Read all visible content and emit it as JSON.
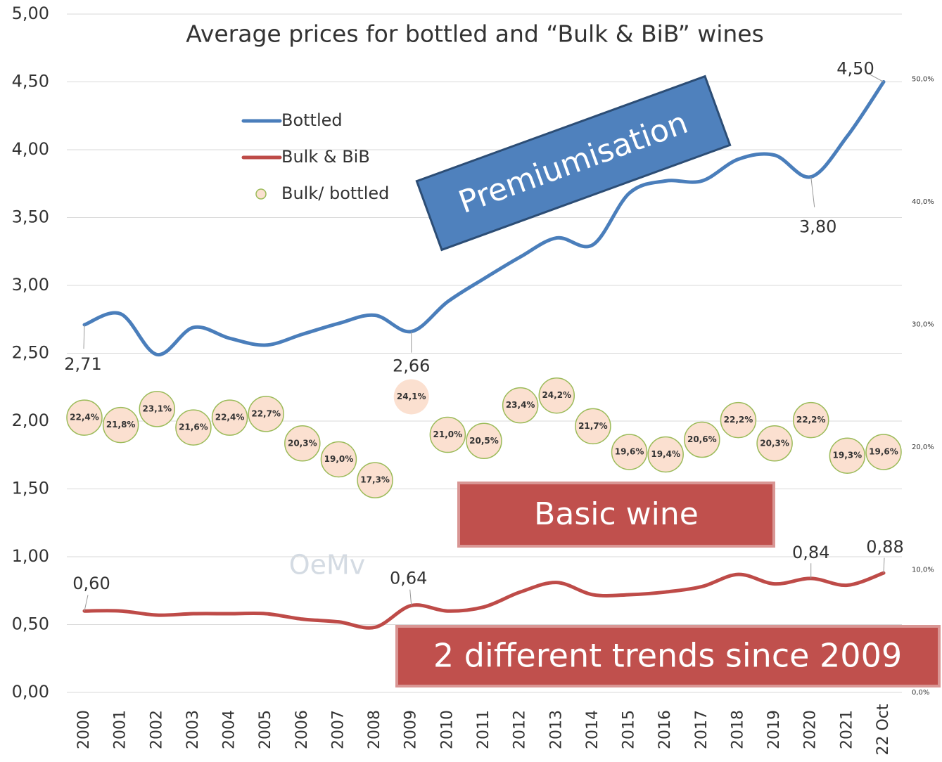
{
  "chart_data": {
    "type": "line",
    "title": "Average prices for bottled and “Bulk & BiB” wines",
    "categories": [
      "2000",
      "2001",
      "2002",
      "2003",
      "2004",
      "2005",
      "2006",
      "2007",
      "2008",
      "2009",
      "2010",
      "2011",
      "2012",
      "2013",
      "2014",
      "2015",
      "2016",
      "2017",
      "2018",
      "2019",
      "2020",
      "2021",
      "22 Oct"
    ],
    "series": [
      {
        "name": "Bottled",
        "color": "#4a7ebb",
        "values": [
          2.71,
          2.79,
          2.49,
          2.69,
          2.61,
          2.56,
          2.64,
          2.72,
          2.78,
          2.66,
          2.88,
          3.05,
          3.21,
          3.35,
          3.3,
          3.68,
          3.77,
          3.77,
          3.93,
          3.96,
          3.8,
          4.1,
          4.5
        ],
        "value_labels": [
          "2,71",
          null,
          null,
          null,
          null,
          null,
          null,
          null,
          null,
          "2,66",
          null,
          null,
          null,
          null,
          null,
          null,
          null,
          null,
          null,
          null,
          "3,80",
          null,
          "4,50"
        ]
      },
      {
        "name": "Bulk & BiB",
        "color": "#be4b48",
        "values": [
          0.6,
          0.6,
          0.57,
          0.58,
          0.58,
          0.58,
          0.54,
          0.52,
          0.48,
          0.64,
          0.6,
          0.63,
          0.74,
          0.81,
          0.72,
          0.72,
          0.74,
          0.78,
          0.87,
          0.8,
          0.84,
          0.79,
          0.88
        ],
        "value_labels": [
          "0,60",
          null,
          null,
          null,
          null,
          null,
          null,
          null,
          null,
          "0,64",
          null,
          null,
          null,
          null,
          null,
          null,
          null,
          null,
          null,
          null,
          "0,84",
          null,
          "0,88"
        ]
      },
      {
        "name": "Bulk/ bottled",
        "type": "scatter",
        "axis": "y2",
        "color": "#fbe0d0",
        "edge_color": "#9bbb59",
        "values": [
          22.4,
          21.8,
          23.1,
          21.6,
          22.4,
          22.7,
          20.3,
          19.0,
          17.3,
          24.1,
          21.0,
          20.5,
          23.4,
          24.2,
          21.7,
          19.6,
          19.4,
          20.6,
          22.2,
          20.3,
          22.2,
          19.3,
          19.6
        ],
        "value_labels": [
          "22,4%",
          "21,8%",
          "23,1%",
          "21,6%",
          "22,4%",
          "22,7%",
          "20,3%",
          "19,0%",
          "17,3%",
          "24,1%",
          "21,0%",
          "20,5%",
          "23,4%",
          "24,2%",
          "21,7%",
          "19,6%",
          "19,4%",
          "20,6%",
          "22,2%",
          "20,3%",
          "22,2%",
          "19,3%",
          "19,6%"
        ]
      }
    ],
    "ylim": [
      0,
      5
    ],
    "yticks": [
      {
        "value": 0,
        "label": "0,00"
      },
      {
        "value": 0.5,
        "label": "0,50"
      },
      {
        "value": 1,
        "label": "1,00"
      },
      {
        "value": 1.5,
        "label": "1,50"
      },
      {
        "value": 2,
        "label": "2,00"
      },
      {
        "value": 2.5,
        "label": "2,50"
      },
      {
        "value": 3,
        "label": "3,00"
      },
      {
        "value": 3.5,
        "label": "3,50"
      },
      {
        "value": 4,
        "label": "4,00"
      },
      {
        "value": 4.5,
        "label": "4,50"
      },
      {
        "value": 5,
        "label": "5,00"
      }
    ],
    "y2lim": [
      0,
      55.3
    ],
    "y2ticks": [
      {
        "value": 0,
        "label": "0,0%"
      },
      {
        "value": 10,
        "label": "10,0%"
      },
      {
        "value": 20,
        "label": "20,0%"
      },
      {
        "value": 30,
        "label": "30,0%"
      },
      {
        "value": 40,
        "label": "40,0%"
      },
      {
        "value": 50,
        "label": "50,0%"
      }
    ],
    "grid": true,
    "legend": "upper left",
    "annotations": [
      "Premiumisation",
      "Basic wine",
      "2 different trends since 2009",
      "OeMv"
    ]
  }
}
